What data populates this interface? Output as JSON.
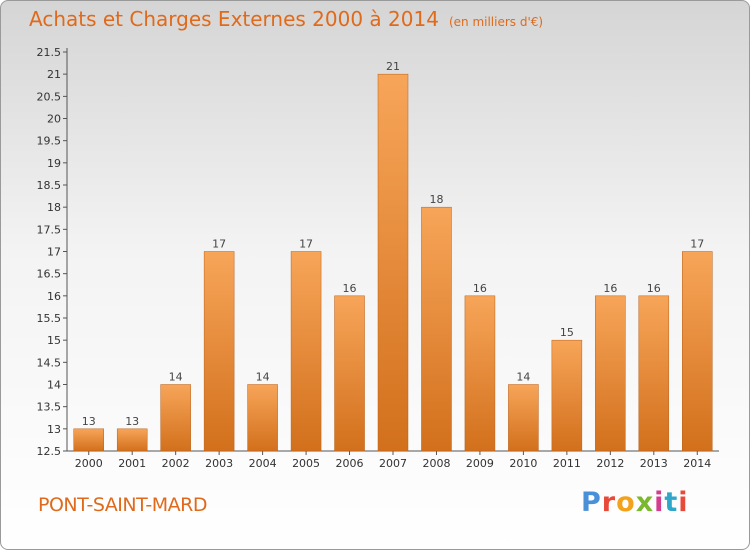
{
  "header": {
    "title": "Achats et Charges Externes 2000 à 2014",
    "subtitle": "(en milliers d'€)"
  },
  "footer": {
    "commune": "PONT-SAINT-MARD",
    "brand": "Proxiti",
    "brand_colors": [
      "#4a90d9",
      "#e84a3a",
      "#f2a31b",
      "#7ab82e",
      "#d43c8e",
      "#2fa7c9",
      "#e84a3a"
    ]
  },
  "colors": {
    "bar_top": "#f7a559",
    "bar_bottom": "#d2701c",
    "axis": "#555555",
    "grid": "#d0d0d0",
    "accent": "#e06a1a"
  },
  "chart_data": {
    "type": "bar",
    "categories": [
      "2000",
      "2001",
      "2002",
      "2003",
      "2004",
      "2005",
      "2006",
      "2007",
      "2008",
      "2009",
      "2010",
      "2011",
      "2012",
      "2013",
      "2014"
    ],
    "values": [
      13,
      13,
      14,
      17,
      14,
      17,
      16,
      21,
      18,
      16,
      14,
      15,
      16,
      16,
      17
    ],
    "data_labels": [
      "13",
      "13",
      "14",
      "17",
      "14",
      "17",
      "16",
      "21",
      "18",
      "16",
      "14",
      "15",
      "16",
      "16",
      "17"
    ],
    "ylim": [
      12.5,
      21.5
    ],
    "yticks": [
      "12.5",
      "13",
      "13.5",
      "14",
      "14.5",
      "15",
      "15.5",
      "16",
      "16.5",
      "17",
      "17.5",
      "18",
      "18.5",
      "19",
      "19.5",
      "20",
      "20.5",
      "21",
      "21.5"
    ],
    "xlabel": "",
    "ylabel": "",
    "grid": false,
    "legend": "none"
  }
}
